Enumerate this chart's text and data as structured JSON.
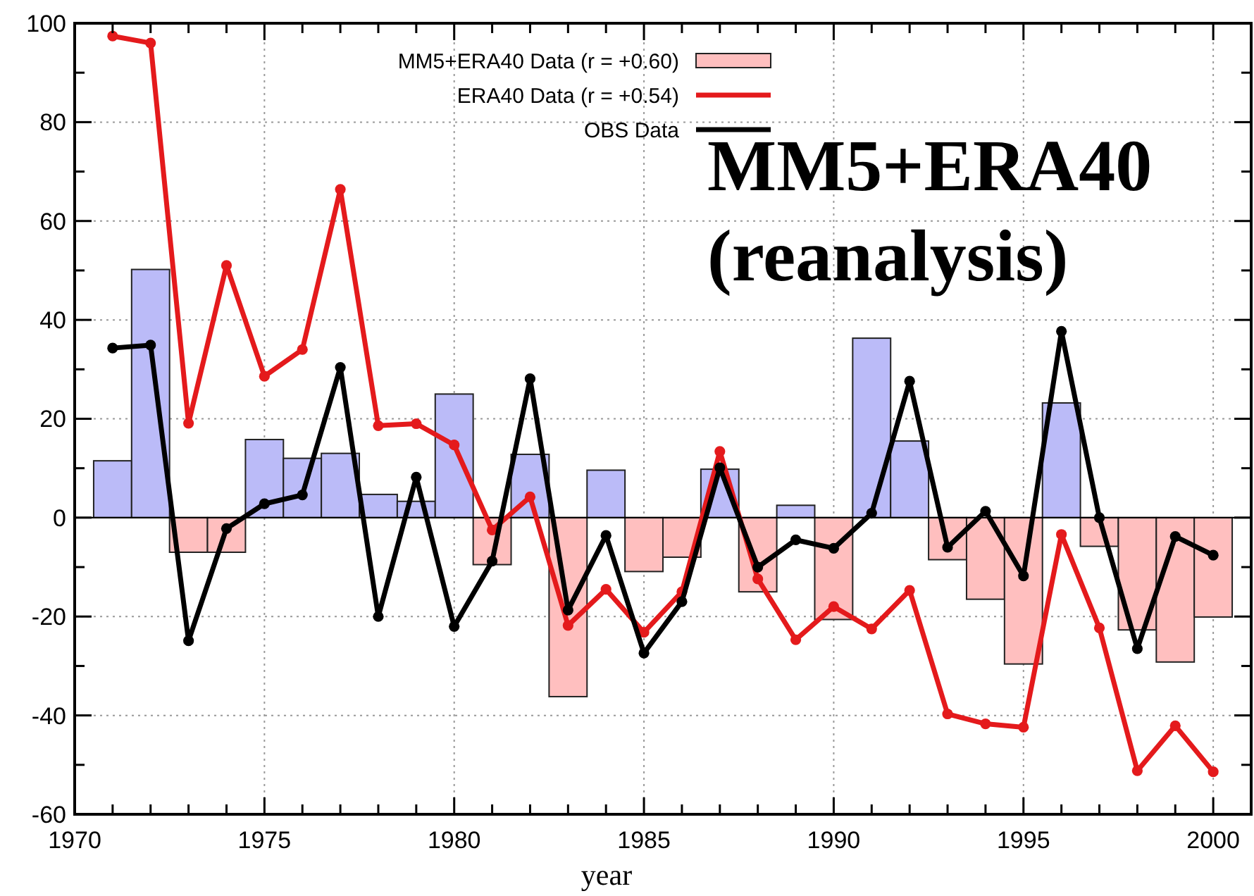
{
  "chart_data": {
    "type": "bar",
    "xlabel": "year",
    "annotations": [
      "MM5+ERA40\n(reanalysis)"
    ],
    "x": [
      1971,
      1972,
      1973,
      1974,
      1975,
      1976,
      1977,
      1978,
      1979,
      1980,
      1981,
      1982,
      1983,
      1984,
      1985,
      1986,
      1987,
      1988,
      1989,
      1990,
      1991,
      1992,
      1993,
      1994,
      1995,
      1996,
      1997,
      1998,
      1999,
      2000
    ],
    "series": [
      {
        "name": "MM5+ERA40 Data (r = +0.60)",
        "color": "#ffbfbf",
        "colors": [
          "#bbbbf8",
          "#bbbbf8",
          "#ffbfbf",
          "#ffbfbf",
          "#bbbbf8",
          "#bbbbf8",
          "#bbbbf8",
          "#bbbbf8",
          "#bbbbf8",
          "#bbbbf8",
          "#ffbfbf",
          "#bbbbf8",
          "#ffbfbf",
          "#bbbbf8",
          "#ffbfbf",
          "#ffbfbf",
          "#bbbbf8",
          "#ffbfbf",
          "#bbbbf8",
          "#ffbfbf",
          "#bbbbf8",
          "#bbbbf8",
          "#ffbfbf",
          "#ffbfbf",
          "#ffbfbf",
          "#bbbbf8",
          "#ffbfbf",
          "#ffbfbf",
          "#ffbfbf",
          "#ffbfbf"
        ],
        "values": [
          11.5,
          50.2,
          -7,
          -7,
          15.8,
          12,
          13,
          4.7,
          3.3,
          25,
          -9.5,
          12.8,
          -36.2,
          9.6,
          -10.9,
          -8,
          9.8,
          -15,
          2.5,
          -20.6,
          36.3,
          15.5,
          -8.5,
          -16.5,
          -29.6,
          23.2,
          -5.8,
          -22.7,
          -29.2,
          -20.1
        ]
      },
      {
        "name": "ERA40 Data (r = +0.54)",
        "type": "line",
        "color": "#e41a1c",
        "values": [
          97.4,
          96,
          19.1,
          51,
          28.6,
          34,
          66.4,
          18.6,
          19,
          14.7,
          -2.5,
          4.2,
          -21.8,
          -14.5,
          -23.2,
          -15,
          13.4,
          -12.4,
          -24.7,
          -18,
          -22.5,
          -14.7,
          -39.7,
          -41.7,
          -42.4,
          -3.4,
          -22.3,
          -51.2,
          -42.1,
          -51.4
        ]
      },
      {
        "name": "OBS Data",
        "type": "line",
        "color": "#000000",
        "values": [
          34.3,
          34.9,
          -24.9,
          -2.2,
          2.8,
          4.6,
          30.4,
          -20,
          8.2,
          -22,
          -8.8,
          28.1,
          -18.7,
          -3.6,
          -27.4,
          -17,
          10.1,
          -10,
          -4.5,
          -6.2,
          0.9,
          27.6,
          -6,
          1.3,
          -11.8,
          37.7,
          0,
          -26.5,
          -3.8,
          -7.6
        ]
      }
    ],
    "xlim": [
      1970,
      2001
    ],
    "xticks": [
      1970,
      {
        "value": 1971,
        "label": null
      },
      {
        "value": 1972,
        "label": null
      },
      {
        "value": 1973,
        "label": null
      },
      {
        "value": 1974,
        "label": null
      },
      1975,
      {
        "value": 1976,
        "label": null
      },
      {
        "value": 1977,
        "label": null
      },
      {
        "value": 1978,
        "label": null
      },
      {
        "value": 1979,
        "label": null
      },
      1980,
      {
        "value": 1981,
        "label": null
      },
      {
        "value": 1982,
        "label": null
      },
      {
        "value": 1983,
        "label": null
      },
      {
        "value": 1984,
        "label": null
      },
      1985,
      {
        "value": 1986,
        "label": null
      },
      {
        "value": 1987,
        "label": null
      },
      {
        "value": 1988,
        "label": null
      },
      {
        "value": 1989,
        "label": null
      },
      1990,
      {
        "value": 1991,
        "label": null
      },
      {
        "value": 1992,
        "label": null
      },
      {
        "value": 1993,
        "label": null
      },
      {
        "value": 1994,
        "label": null
      },
      1995,
      {
        "value": 1996,
        "label": null
      },
      {
        "value": 1997,
        "label": null
      },
      {
        "value": 1998,
        "label": null
      },
      {
        "value": 1999,
        "label": null
      },
      2000
    ],
    "ylim": [
      -60,
      100
    ],
    "yticks": [
      -60,
      {
        "value": -50,
        "label": null
      },
      -40,
      {
        "value": -30,
        "label": null
      },
      -20,
      {
        "value": -10,
        "label": null
      },
      0,
      {
        "value": 10,
        "label": null
      },
      20,
      {
        "value": 30,
        "label": null
      },
      40,
      {
        "value": 50,
        "label": null
      },
      60,
      {
        "value": 70,
        "label": null
      },
      80,
      {
        "value": 90,
        "label": null
      },
      100
    ],
    "grid": true,
    "legend": "top",
    "marker": "circle",
    "line_style": "solid"
  }
}
